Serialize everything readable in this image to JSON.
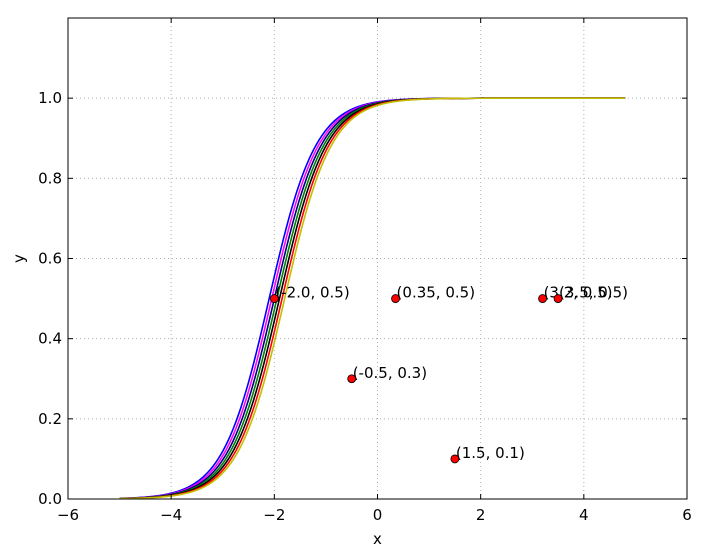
{
  "chart_data": {
    "type": "line",
    "title": "",
    "xlabel": "x",
    "ylabel": "y",
    "xlim": [
      -6,
      6
    ],
    "ylim": [
      0,
      1.2
    ],
    "xticks": [
      -6,
      -4,
      -2,
      0,
      2,
      4,
      6
    ],
    "xtick_labels": [
      "−6",
      "−4",
      "−2",
      "0",
      "2",
      "4",
      "6"
    ],
    "yticks": [
      0.0,
      0.2,
      0.4,
      0.6,
      0.8,
      1.0
    ],
    "ytick_labels": [
      "0.0",
      "0.2",
      "0.4",
      "0.6",
      "0.8",
      "1.0"
    ],
    "grid": true,
    "grid_style": "dotted",
    "curve_domain": [
      -5,
      4.8
    ],
    "series": [
      {
        "type": "sigmoid",
        "center": -2.1,
        "scale": 0.45,
        "color": "#0000ff"
      },
      {
        "type": "sigmoid",
        "center": -2.05,
        "scale": 0.45,
        "color": "#ff00ff"
      },
      {
        "type": "sigmoid",
        "center": -2.0,
        "scale": 0.45,
        "color": "#000080"
      },
      {
        "type": "sigmoid",
        "center": -1.95,
        "scale": 0.45,
        "color": "#008000"
      },
      {
        "type": "sigmoid",
        "center": -1.9,
        "scale": 0.45,
        "color": "#000000"
      },
      {
        "type": "sigmoid",
        "center": -1.85,
        "scale": 0.45,
        "color": "#ff0000"
      },
      {
        "type": "sigmoid",
        "center": -1.8,
        "scale": 0.45,
        "color": "#c0c000"
      }
    ],
    "points": [
      {
        "x": -2.0,
        "y": 0.5,
        "label": "(-2.0, 0.5)"
      },
      {
        "x": 0.35,
        "y": 0.5,
        "label": "(0.35, 0.5)"
      },
      {
        "x": -0.5,
        "y": 0.3,
        "label": "(-0.5, 0.3)"
      },
      {
        "x": 1.5,
        "y": 0.1,
        "label": "(1.5, 0.1)"
      },
      {
        "x": 3.2,
        "y": 0.5,
        "label": "(3.2, 0.5)"
      },
      {
        "x": 3.5,
        "y": 0.5,
        "label": "(3.5, 0.5)"
      }
    ],
    "point_color": "#ff0000"
  }
}
